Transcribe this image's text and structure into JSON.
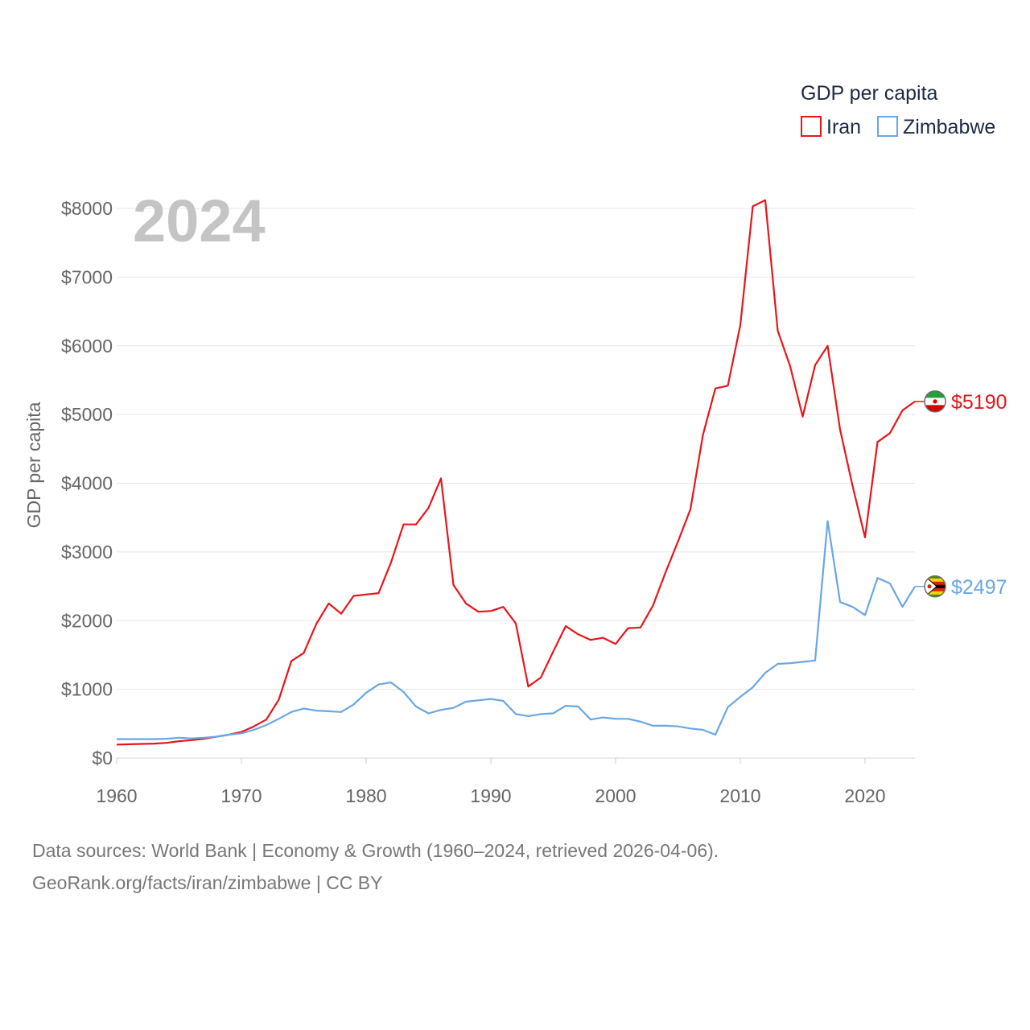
{
  "chart_data": {
    "type": "line",
    "title": "",
    "year_label": "2024",
    "legend_title": "GDP per capita",
    "ylabel": "GDP per capita",
    "xlabel": "",
    "xlim": [
      1960,
      2024
    ],
    "ylim": [
      0,
      8000
    ],
    "x_ticks": [
      1960,
      1970,
      1980,
      1990,
      2000,
      2010,
      2020
    ],
    "x_tick_labels": [
      "1960",
      "1970",
      "1980",
      "1990",
      "2000",
      "2010",
      "2020"
    ],
    "y_ticks": [
      0,
      1000,
      2000,
      3000,
      4000,
      5000,
      6000,
      7000,
      8000
    ],
    "y_tick_labels": [
      "$0",
      "$1000",
      "$2000",
      "$3000",
      "$4000",
      "$5000",
      "$6000",
      "$7000",
      "$8000"
    ],
    "grid": true,
    "legend_position": "top-right",
    "series": [
      {
        "name": "Iran",
        "color": "#e8151b",
        "end_label": "$5190",
        "x": [
          1960,
          1961,
          1962,
          1963,
          1964,
          1965,
          1966,
          1967,
          1968,
          1969,
          1970,
          1971,
          1972,
          1973,
          1974,
          1975,
          1976,
          1977,
          1978,
          1979,
          1980,
          1981,
          1982,
          1983,
          1984,
          1985,
          1986,
          1987,
          1988,
          1989,
          1990,
          1991,
          1992,
          1993,
          1994,
          1995,
          1996,
          1997,
          1998,
          1999,
          2000,
          2001,
          2002,
          2003,
          2004,
          2005,
          2006,
          2007,
          2008,
          2009,
          2010,
          2011,
          2012,
          2013,
          2014,
          2015,
          2016,
          2017,
          2018,
          2019,
          2020,
          2021,
          2022,
          2023,
          2024
        ],
        "values": [
          195,
          200,
          205,
          210,
          220,
          245,
          260,
          280,
          310,
          340,
          380,
          460,
          560,
          850,
          1410,
          1530,
          1950,
          2250,
          2100,
          2360,
          2380,
          2400,
          2850,
          3400,
          3400,
          3640,
          4070,
          2520,
          2250,
          2130,
          2140,
          2200,
          1960,
          1040,
          1170,
          1550,
          1920,
          1800,
          1720,
          1750,
          1660,
          1890,
          1900,
          2220,
          2700,
          3150,
          3620,
          4700,
          5380,
          5420,
          6300,
          8030,
          8120,
          6220,
          5700,
          4970,
          5720,
          6000,
          4780,
          3960,
          3210,
          4600,
          4730,
          5060,
          5190
        ]
      },
      {
        "name": "Zimbabwe",
        "color": "#6aa6e3",
        "end_label": "$2497",
        "x": [
          1960,
          1961,
          1962,
          1963,
          1964,
          1965,
          1966,
          1967,
          1968,
          1969,
          1970,
          1971,
          1972,
          1973,
          1974,
          1975,
          1976,
          1977,
          1978,
          1979,
          1980,
          1981,
          1982,
          1983,
          1984,
          1985,
          1986,
          1987,
          1988,
          1989,
          1990,
          1991,
          1992,
          1993,
          1994,
          1995,
          1996,
          1997,
          1998,
          1999,
          2000,
          2001,
          2002,
          2003,
          2004,
          2005,
          2006,
          2007,
          2008,
          2009,
          2010,
          2011,
          2012,
          2013,
          2014,
          2015,
          2016,
          2017,
          2018,
          2019,
          2020,
          2021,
          2022,
          2023,
          2024
        ],
        "values": [
          275,
          275,
          275,
          275,
          280,
          295,
          285,
          295,
          310,
          340,
          360,
          410,
          480,
          570,
          670,
          720,
          690,
          680,
          670,
          780,
          950,
          1070,
          1100,
          960,
          750,
          650,
          700,
          730,
          820,
          840,
          860,
          830,
          640,
          610,
          640,
          650,
          760,
          750,
          560,
          590,
          570,
          570,
          530,
          470,
          470,
          460,
          430,
          410,
          340,
          740,
          890,
          1030,
          1240,
          1370,
          1380,
          1400,
          1420,
          3450,
          2270,
          2200,
          2080,
          2620,
          2540,
          2200,
          2497
        ]
      }
    ]
  },
  "footer": {
    "line1": "Data sources: World Bank | Economy & Growth (1960–2024, retrieved 2026-04-06).",
    "line2": "GeoRank.org/facts/iran/zimbabwe | CC BY"
  },
  "icons": {
    "Iran": "iran-flag-icon",
    "Zimbabwe": "zimbabwe-flag-icon"
  }
}
